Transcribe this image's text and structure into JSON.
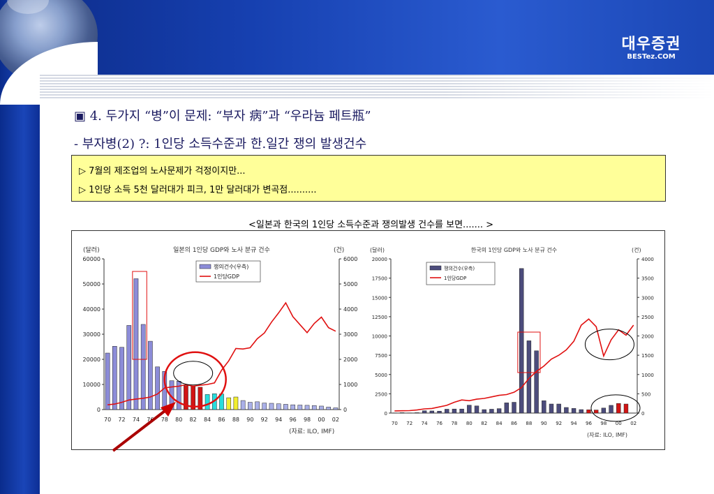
{
  "header": {
    "logo_korean": "대우증권",
    "logo_english": "BESTez.COM"
  },
  "slide": {
    "title1": "▣ 4. 두가지 “병”이 문제: “부자 病”과 “우라늄 페트瓶”",
    "title2": "- 부자병(2) ?: 1인당 소득수준과 한.일간 쟁의 발생건수",
    "note_line1": "▷ 7월의 제조업의 노사문제가 걱정이지만...",
    "note_line2": "▷ 1인당 소득 5천 달러대가 피크, 1만 달러대가 변곡점..........",
    "caption": "<일본과 한국의 1인당 소득수준과 쟁의발생 건수를 보면....... >"
  },
  "colors": {
    "bar_japan": "#8c8cd8",
    "bar_korea": "#4c4c7c",
    "bar_red": "#d21414",
    "bar_yellow": "#f2ee30",
    "bar_cyan": "#28dcdc",
    "bar_light_blue": "#aab0e8",
    "gdp_line": "#e01010",
    "highlight_rect": "#e01010",
    "highlight_ellipse": "#e01010",
    "arrow": "#cc0000"
  },
  "chart_data": [
    {
      "type": "bar",
      "title": "일본의 1인당 GDP와 노사 분규 건수",
      "left_unit": "(달러)",
      "right_unit": "(건)",
      "source": "(자료: ILO, IMF)",
      "x_tick_labels": [
        "70",
        "72",
        "74",
        "76",
        "78",
        "80",
        "82",
        "84",
        "86",
        "88",
        "90",
        "92",
        "94",
        "96",
        "98",
        "00",
        "02"
      ],
      "left_axis": {
        "min": 0,
        "max": 60000,
        "ticks": [
          "0",
          "10000",
          "20000",
          "30000",
          "40000",
          "50000",
          "60000"
        ]
      },
      "right_axis": {
        "min": 0,
        "max": 6000,
        "ticks": [
          "0",
          "1000",
          "2000",
          "3000",
          "4000",
          "5000",
          "6000"
        ]
      },
      "legend": [
        "쟁의건수(우측)",
        "1인당GDP"
      ],
      "x": [
        1970,
        1971,
        1972,
        1973,
        1974,
        1975,
        1976,
        1977,
        1978,
        1979,
        1980,
        1981,
        1982,
        1983,
        1984,
        1985,
        1986,
        1987,
        1988,
        1989,
        1990,
        1991,
        1992,
        1993,
        1994,
        1995,
        1996,
        1997,
        1998,
        1999,
        2000,
        2001,
        2002
      ],
      "disputes": [
        2250,
        2520,
        2480,
        3350,
        5210,
        3390,
        2720,
        1700,
        1520,
        1150,
        1130,
        950,
        940,
        890,
        600,
        630,
        620,
        470,
        500,
        360,
        290,
        310,
        260,
        250,
        230,
        210,
        190,
        180,
        170,
        160,
        140,
        100,
        70
      ],
      "bar_colors": [
        "#8c8cd8",
        "#8c8cd8",
        "#8c8cd8",
        "#8c8cd8",
        "#8c8cd8",
        "#8c8cd8",
        "#8c8cd8",
        "#8c8cd8",
        "#8c8cd8",
        "#8c8cd8",
        "#8c8cd8",
        "#d21414",
        "#d21414",
        "#d21414",
        "#28dcdc",
        "#28dcdc",
        "#28dcdc",
        "#f2ee30",
        "#f2ee30",
        "#aab0e8",
        "#aab0e8",
        "#aab0e8",
        "#aab0e8",
        "#aab0e8",
        "#aab0e8",
        "#aab0e8",
        "#aab0e8",
        "#aab0e8",
        "#aab0e8",
        "#aab0e8",
        "#aab0e8",
        "#aab0e8",
        "#aab0e8"
      ],
      "gdp": [
        1900,
        2200,
        2900,
        3800,
        4200,
        4500,
        5000,
        6200,
        8600,
        9000,
        9300,
        9900,
        9300,
        9700,
        10000,
        10600,
        15700,
        19400,
        24300,
        24100,
        24600,
        28200,
        30500,
        34800,
        38500,
        42500,
        37000,
        33800,
        30600,
        34300,
        36800,
        32600,
        31200
      ]
    },
    {
      "type": "bar",
      "title": "한국의 1인당 GDP와 노사 분규 건수",
      "left_unit": "(달러)",
      "right_unit": "(건)",
      "source": "(자료: ILO, IMF)",
      "x_tick_labels": [
        "70",
        "72",
        "74",
        "76",
        "78",
        "80",
        "82",
        "84",
        "86",
        "88",
        "90",
        "92",
        "94",
        "96",
        "98",
        "00",
        "02"
      ],
      "left_axis": {
        "min": 0,
        "max": 20000,
        "ticks": [
          "0",
          "2500",
          "5000",
          "7500",
          "10000",
          "12500",
          "15000",
          "17500",
          "20000"
        ]
      },
      "right_axis": {
        "min": 0,
        "max": 4000,
        "ticks": [
          "0",
          "500",
          "1000",
          "1500",
          "2000",
          "2500",
          "3000",
          "3500",
          "4000"
        ]
      },
      "legend": [
        "쟁의건수(우측)",
        "1인당GDP"
      ],
      "x": [
        1970,
        1971,
        1972,
        1973,
        1974,
        1975,
        1976,
        1977,
        1978,
        1979,
        1980,
        1981,
        1982,
        1983,
        1984,
        1985,
        1986,
        1987,
        1988,
        1989,
        1990,
        1991,
        1992,
        1993,
        1994,
        1995,
        1996,
        1997,
        1998,
        1999,
        2000,
        2001,
        2002
      ],
      "disputes": [
        5,
        10,
        5,
        10,
        60,
        55,
        50,
        100,
        105,
        105,
        205,
        185,
        90,
        100,
        115,
        265,
        280,
        3750,
        1875,
        1615,
        320,
        235,
        235,
        145,
        120,
        90,
        85,
        80,
        130,
        200,
        250,
        235,
        0
      ],
      "bar_colors": [
        "#4c4c7c",
        "#4c4c7c",
        "#4c4c7c",
        "#4c4c7c",
        "#4c4c7c",
        "#4c4c7c",
        "#4c4c7c",
        "#4c4c7c",
        "#4c4c7c",
        "#4c4c7c",
        "#4c4c7c",
        "#4c4c7c",
        "#4c4c7c",
        "#4c4c7c",
        "#4c4c7c",
        "#4c4c7c",
        "#4c4c7c",
        "#4c4c7c",
        "#4c4c7c",
        "#4c4c7c",
        "#4c4c7c",
        "#4c4c7c",
        "#4c4c7c",
        "#4c4c7c",
        "#4c4c7c",
        "#4c4c7c",
        "#d21414",
        "#d21414",
        "#4c4c7c",
        "#4c4c7c",
        "#d21414",
        "#d21414",
        "#d21414"
      ],
      "gdp": [
        280,
        300,
        320,
        400,
        540,
        600,
        800,
        1000,
        1400,
        1700,
        1600,
        1800,
        1900,
        2100,
        2300,
        2400,
        2700,
        3300,
        4500,
        5400,
        6100,
        7000,
        7500,
        8200,
        9300,
        11400,
        12200,
        11200,
        7400,
        9500,
        10800,
        10100,
        11400
      ]
    }
  ]
}
